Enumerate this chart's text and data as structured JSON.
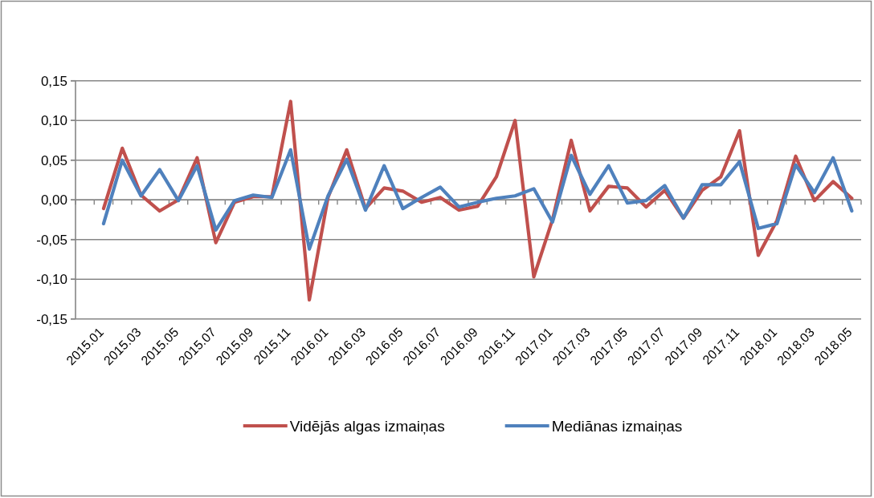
{
  "chart_data": {
    "type": "line",
    "categories": [
      "2015.01",
      null,
      "2015.03",
      null,
      "2015.05",
      null,
      "2015.07",
      null,
      "2015.09",
      null,
      "2015.11",
      null,
      "2016.01",
      null,
      "2016.03",
      null,
      "2016.05",
      null,
      "2016.07",
      null,
      "2016.09",
      null,
      "2016.11",
      null,
      "2017.01",
      null,
      "2017.03",
      null,
      "2017.05",
      null,
      "2017.07",
      null,
      "2017.09",
      null,
      "2017.11",
      null,
      "2018.01",
      null,
      "2018.03",
      null,
      "2018.05",
      null
    ],
    "series": [
      {
        "name": "Vidējās algas izmaiņas",
        "color": "#c0504d",
        "values": [
          null,
          -0.011,
          0.065,
          0.006,
          -0.014,
          0.0,
          0.053,
          -0.054,
          -0.003,
          0.004,
          0.004,
          0.124,
          -0.126,
          0.003,
          0.063,
          -0.011,
          0.015,
          0.011,
          -0.003,
          0.003,
          -0.013,
          -0.008,
          0.029,
          0.1,
          -0.097,
          -0.025,
          0.075,
          -0.014,
          0.017,
          0.015,
          -0.009,
          0.012,
          -0.023,
          0.012,
          0.029,
          0.087,
          -0.07,
          -0.026,
          0.055,
          -0.001,
          0.023,
          0.002
        ]
      },
      {
        "name": "Mediānas izmaiņas",
        "color": "#4f81bd",
        "values": [
          null,
          -0.03,
          0.05,
          0.005,
          0.038,
          -0.001,
          0.043,
          -0.038,
          -0.001,
          0.006,
          0.003,
          0.063,
          -0.062,
          0.005,
          0.051,
          -0.013,
          0.043,
          -0.011,
          0.003,
          0.016,
          -0.009,
          -0.003,
          0.002,
          0.005,
          0.014,
          -0.028,
          0.056,
          0.007,
          0.043,
          -0.004,
          -0.001,
          0.018,
          -0.023,
          0.019,
          0.019,
          0.048,
          -0.036,
          -0.03,
          0.044,
          0.009,
          0.053,
          -0.014
        ]
      }
    ],
    "ylim": [
      -0.15,
      0.15
    ],
    "yticks": [
      {
        "value": -0.15,
        "label": "-0,15"
      },
      {
        "value": -0.1,
        "label": "-0,10"
      },
      {
        "value": -0.05,
        "label": "-0,05"
      },
      {
        "value": 0,
        "label": "0,00"
      },
      {
        "value": 0.05,
        "label": "0,05"
      },
      {
        "value": 0.1,
        "label": "0,10"
      },
      {
        "value": 0.15,
        "label": "0,15"
      }
    ],
    "grid": "y",
    "legend": "bottom",
    "line_style": "solid"
  }
}
